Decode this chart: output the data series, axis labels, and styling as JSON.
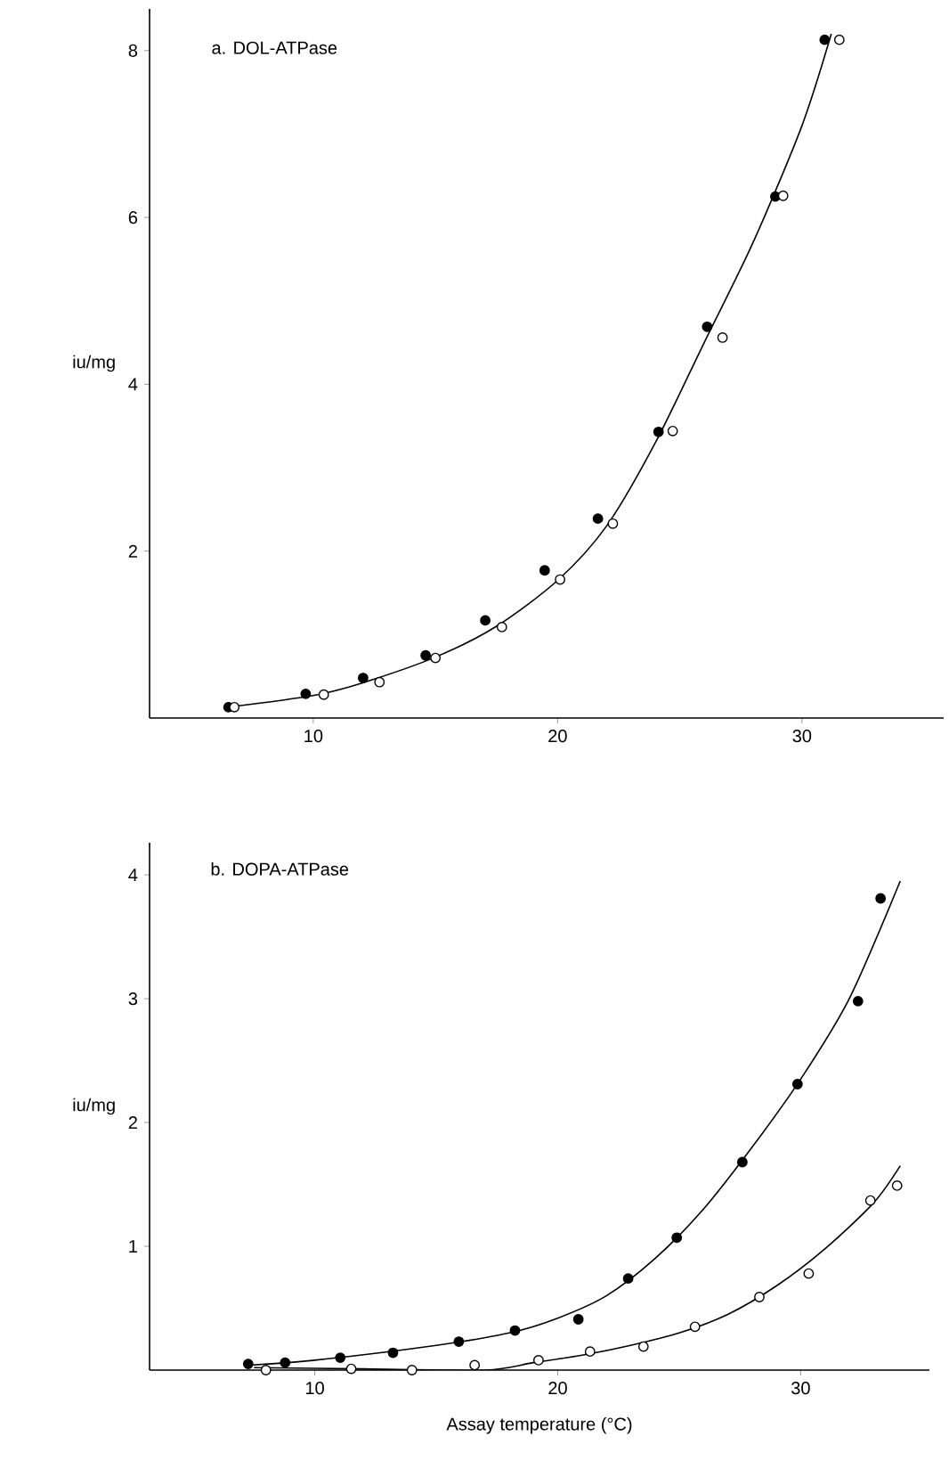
{
  "chart_data": [
    {
      "type": "scatter",
      "title": "a. DOL-ATPase",
      "ylabel": "iu/mg",
      "xlim": [
        3.3,
        35.8
      ],
      "ylim": [
        0,
        8.5
      ],
      "xticks": [
        10,
        20,
        30
      ],
      "yticks": [
        2,
        4,
        6,
        8
      ],
      "series": [
        {
          "type": "scatter",
          "marker": "circle",
          "color": "#000000",
          "x": [
            6.53,
            9.69,
            12.04,
            14.6,
            17.04,
            19.47,
            21.65,
            24.13,
            26.12,
            28.91,
            30.93
          ],
          "values": [
            0.13,
            0.29,
            0.48,
            0.75,
            1.17,
            1.77,
            2.39,
            3.43,
            4.69,
            6.25,
            8.13
          ]
        },
        {
          "type": "scatter",
          "marker": "circle",
          "color": "#ffffff",
          "x": [
            6.77,
            10.43,
            12.71,
            15.0,
            17.72,
            20.1,
            22.26,
            24.71,
            26.75,
            29.23,
            31.53
          ],
          "values": [
            0.13,
            0.28,
            0.43,
            0.72,
            1.09,
            1.66,
            2.33,
            3.44,
            4.56,
            6.26,
            8.13
          ]
        },
        {
          "type": "line",
          "color": "#000000",
          "marker": "none",
          "x": [
            6.5,
            10,
            12,
            15,
            17.5,
            20,
            22,
            24,
            26,
            28,
            30,
            31.2
          ],
          "values": [
            0.13,
            0.27,
            0.42,
            0.73,
            1.1,
            1.65,
            2.3,
            3.3,
            4.5,
            5.7,
            7.1,
            8.2
          ]
        }
      ]
    },
    {
      "type": "scatter",
      "title": "b. DOPA-ATPase",
      "ylabel": "iu/mg",
      "xlabel": "Assay temperature (°C)",
      "xlim": [
        3.2,
        35.3
      ],
      "ylim": [
        0,
        4.26
      ],
      "xticks": [
        10,
        20,
        30
      ],
      "yticks": [
        1,
        2,
        3,
        4
      ],
      "series": [
        {
          "type": "scatter",
          "marker": "circle",
          "color": "#000000",
          "x": [
            7.26,
            8.78,
            11.05,
            13.22,
            15.93,
            18.24,
            20.85,
            22.9,
            24.9,
            27.6,
            29.87,
            32.36,
            33.29
          ],
          "values": [
            0.05,
            0.06,
            0.1,
            0.14,
            0.23,
            0.32,
            0.41,
            0.74,
            1.07,
            1.68,
            2.31,
            2.98,
            3.81
          ]
        },
        {
          "type": "scatter",
          "marker": "circle",
          "color": "#ffffff",
          "x": [
            7.99,
            11.5,
            14.0,
            16.58,
            19.21,
            21.33,
            23.53,
            25.65,
            28.3,
            30.33,
            32.87,
            33.97
          ],
          "values": [
            0.0,
            0.01,
            0.0,
            0.04,
            0.08,
            0.15,
            0.19,
            0.35,
            0.59,
            0.78,
            1.37,
            1.49
          ]
        },
        {
          "type": "line",
          "color": "#000000",
          "marker": "none",
          "x": [
            7.3,
            10,
            15,
            18,
            20,
            22,
            24,
            26,
            28,
            30,
            32,
            34.1
          ],
          "values": [
            0.04,
            0.08,
            0.2,
            0.3,
            0.42,
            0.6,
            0.9,
            1.3,
            1.8,
            2.35,
            3.0,
            3.95
          ]
        },
        {
          "type": "line",
          "color": "#000000",
          "marker": "none",
          "x": [
            7.5,
            12,
            17,
            19,
            21,
            23,
            25,
            27,
            29,
            31,
            33,
            34.1
          ],
          "values": [
            0.02,
            0.01,
            0.0,
            0.06,
            0.12,
            0.2,
            0.3,
            0.45,
            0.68,
            0.98,
            1.35,
            1.65
          ]
        }
      ]
    }
  ]
}
